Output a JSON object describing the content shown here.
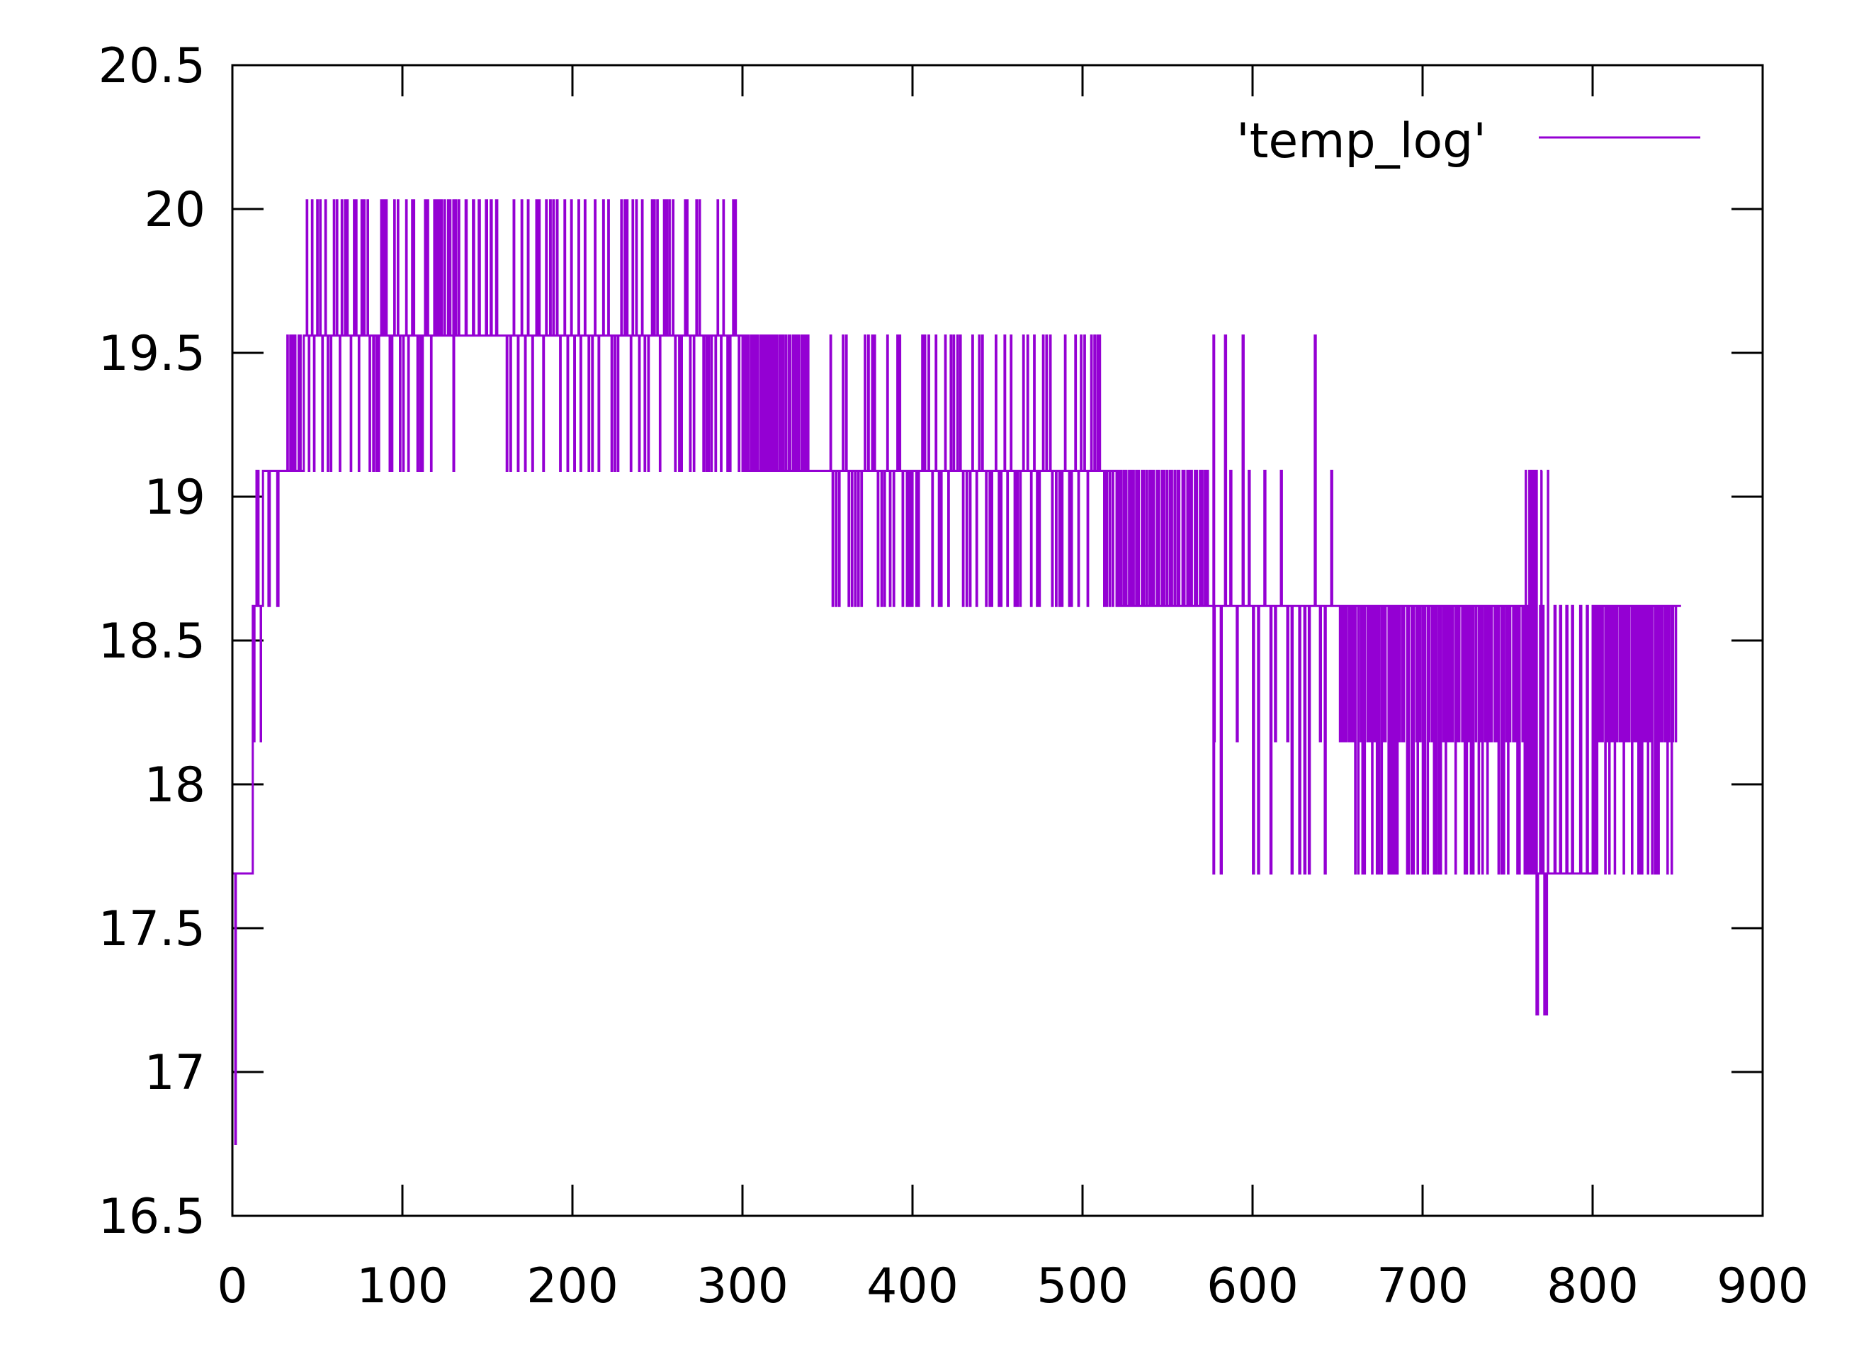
{
  "chart_data": {
    "type": "line",
    "title": "",
    "xlabel": "",
    "ylabel": "",
    "xlim": [
      0,
      900
    ],
    "ylim": [
      16.5,
      20.5
    ],
    "x_ticks": [
      0,
      100,
      200,
      300,
      400,
      500,
      600,
      700,
      800,
      900
    ],
    "y_ticks": [
      16.5,
      17,
      17.5,
      18,
      18.5,
      19,
      19.5,
      20,
      20.5
    ],
    "x_tick_labels": [
      "0",
      "100",
      "200",
      "300",
      "400",
      "500",
      "600",
      "700",
      "800",
      "900"
    ],
    "y_tick_labels": [
      "16.5",
      "17",
      "17.5",
      "18",
      "18.5",
      "19",
      "19.5",
      "20",
      "20.5"
    ],
    "grid": false,
    "legend_position": "top-right",
    "series": [
      {
        "name": "'temp_log'",
        "color": "#9400d3",
        "levels_observed": [
          16.75,
          17.2,
          17.69,
          18.15,
          18.62,
          19.09,
          19.56,
          20.03
        ],
        "segments": [
          {
            "x_start": 0,
            "x_end": 4,
            "base": 17.69,
            "alt": [
              16.75
            ],
            "flips": 1
          },
          {
            "x_start": 4,
            "x_end": 12,
            "base": 17.69,
            "alt": [],
            "flips": 0
          },
          {
            "x_start": 12,
            "x_end": 18,
            "base": 18.62,
            "alt": [
              18.15,
              19.09
            ],
            "flips": 4
          },
          {
            "x_start": 18,
            "x_end": 31,
            "base": 19.09,
            "alt": [
              18.62
            ],
            "flips": 2
          },
          {
            "x_start": 31,
            "x_end": 42,
            "base": 19.09,
            "alt": [
              19.56
            ],
            "flips": 6
          },
          {
            "x_start": 42,
            "x_end": 135,
            "base": 19.56,
            "alt": [
              20.03,
              19.09
            ],
            "flips": 56
          },
          {
            "x_start": 135,
            "x_end": 160,
            "base": 19.56,
            "alt": [
              20.03
            ],
            "flips": 6
          },
          {
            "x_start": 160,
            "x_end": 220,
            "base": 19.56,
            "alt": [
              19.09,
              20.03
            ],
            "flips": 28
          },
          {
            "x_start": 220,
            "x_end": 300,
            "base": 19.56,
            "alt": [
              20.03,
              19.09
            ],
            "flips": 44
          },
          {
            "x_start": 300,
            "x_end": 340,
            "base": 19.09,
            "alt": [
              19.56
            ],
            "flips": 30
          },
          {
            "x_start": 340,
            "x_end": 350,
            "base": 19.09,
            "alt": [],
            "flips": 0
          },
          {
            "x_start": 350,
            "x_end": 520,
            "base": 19.09,
            "alt": [
              18.62,
              19.56
            ],
            "flips": 90
          },
          {
            "x_start": 520,
            "x_end": 575,
            "base": 18.62,
            "alt": [
              19.09
            ],
            "flips": 36
          },
          {
            "x_start": 575,
            "x_end": 650,
            "base": 18.62,
            "alt": [
              17.69,
              19.09,
              19.56,
              18.15
            ],
            "flips": 22
          },
          {
            "x_start": 650,
            "x_end": 760,
            "base": 18.62,
            "alt": [
              17.69,
              18.15
            ],
            "flips": 80
          },
          {
            "x_start": 760,
            "x_end": 775,
            "base": 17.69,
            "alt": [
              18.62,
              17.2,
              19.09
            ],
            "flips": 14
          },
          {
            "x_start": 775,
            "x_end": 800,
            "base": 17.69,
            "alt": [
              18.62
            ],
            "flips": 6
          },
          {
            "x_start": 800,
            "x_end": 850,
            "base": 18.62,
            "alt": [
              17.69,
              18.15
            ],
            "flips": 40
          }
        ]
      }
    ]
  }
}
